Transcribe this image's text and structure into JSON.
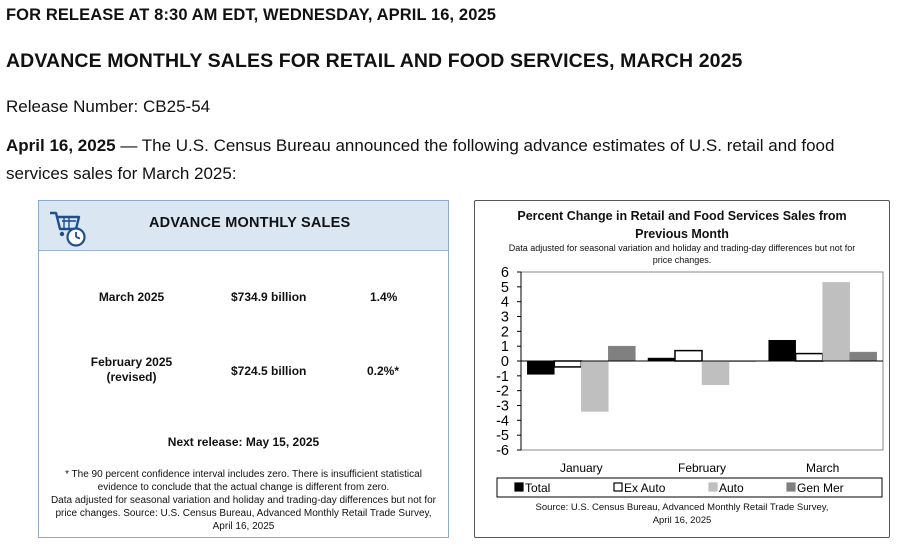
{
  "header": {
    "release_line": "FOR RELEASE AT 8:30 AM EDT, WEDNESDAY, APRIL 16, 2025",
    "title": "ADVANCE MONTHLY SALES FOR RETAIL AND FOOD SERVICES, MARCH 2025",
    "release_number": "Release Number: CB25-54"
  },
  "intro": {
    "date": "April 16, 2025",
    "text": " — The U.S. Census Bureau announced the following advance estimates of U.S. retail and food services sales for March 2025:"
  },
  "sales_box": {
    "title": "ADVANCE MONTHLY SALES",
    "rows": [
      {
        "label_line1": "March 2025",
        "label_line2": "",
        "value": "$734.9 billion",
        "change": "1.4%"
      },
      {
        "label_line1": "February 2025",
        "label_line2": "(revised)",
        "value": "$724.5 billion",
        "change": "0.2%*"
      }
    ],
    "next_release": "Next release: May 15, 2025",
    "footnote_line1": "* The 90 percent confidence interval includes zero. There is insufficient statistical evidence to conclude that the actual change is different from zero.",
    "footnote_line2": "Data adjusted for seasonal variation and holiday and trading-day differences but not for price changes. Source: U.S. Census Bureau, Advanced Monthly Retail Trade Survey, April 16, 2025"
  },
  "chart_panel": {
    "title_line1": "Percent Change in Retail and Food Services Sales from",
    "title_line2": "Previous Month",
    "subtitle_line1": "Data adjusted for seasonal variation and holiday and trading-day differences but not for",
    "subtitle_line2": "price changes.",
    "source_line1": "Source: U.S. Census Bureau, Advanced Monthly Retail Trade Survey,",
    "source_line2": "April 16, 2025"
  },
  "chart_data": {
    "type": "bar",
    "title": "Percent Change in Retail and Food Services Sales from Previous Month",
    "categories": [
      "January",
      "February",
      "March"
    ],
    "series": [
      {
        "name": "Total",
        "values": [
          -0.9,
          0.2,
          1.4
        ],
        "color": "#000000"
      },
      {
        "name": "Ex Auto",
        "values": [
          -0.4,
          0.7,
          0.5
        ],
        "color": "#ffffff"
      },
      {
        "name": "Auto",
        "values": [
          -3.4,
          -1.6,
          5.3
        ],
        "color": "#bfbfbf"
      },
      {
        "name": "Gen Mer",
        "values": [
          1.0,
          0.0,
          0.6
        ],
        "color": "#808080"
      }
    ],
    "ylim": [
      -6,
      6
    ],
    "yticks": [
      "6",
      "5",
      "4",
      "3",
      "2",
      "1",
      "0",
      "-1",
      "-2",
      "-3",
      "-4",
      "-5",
      "-6"
    ],
    "legend": "bottom"
  }
}
